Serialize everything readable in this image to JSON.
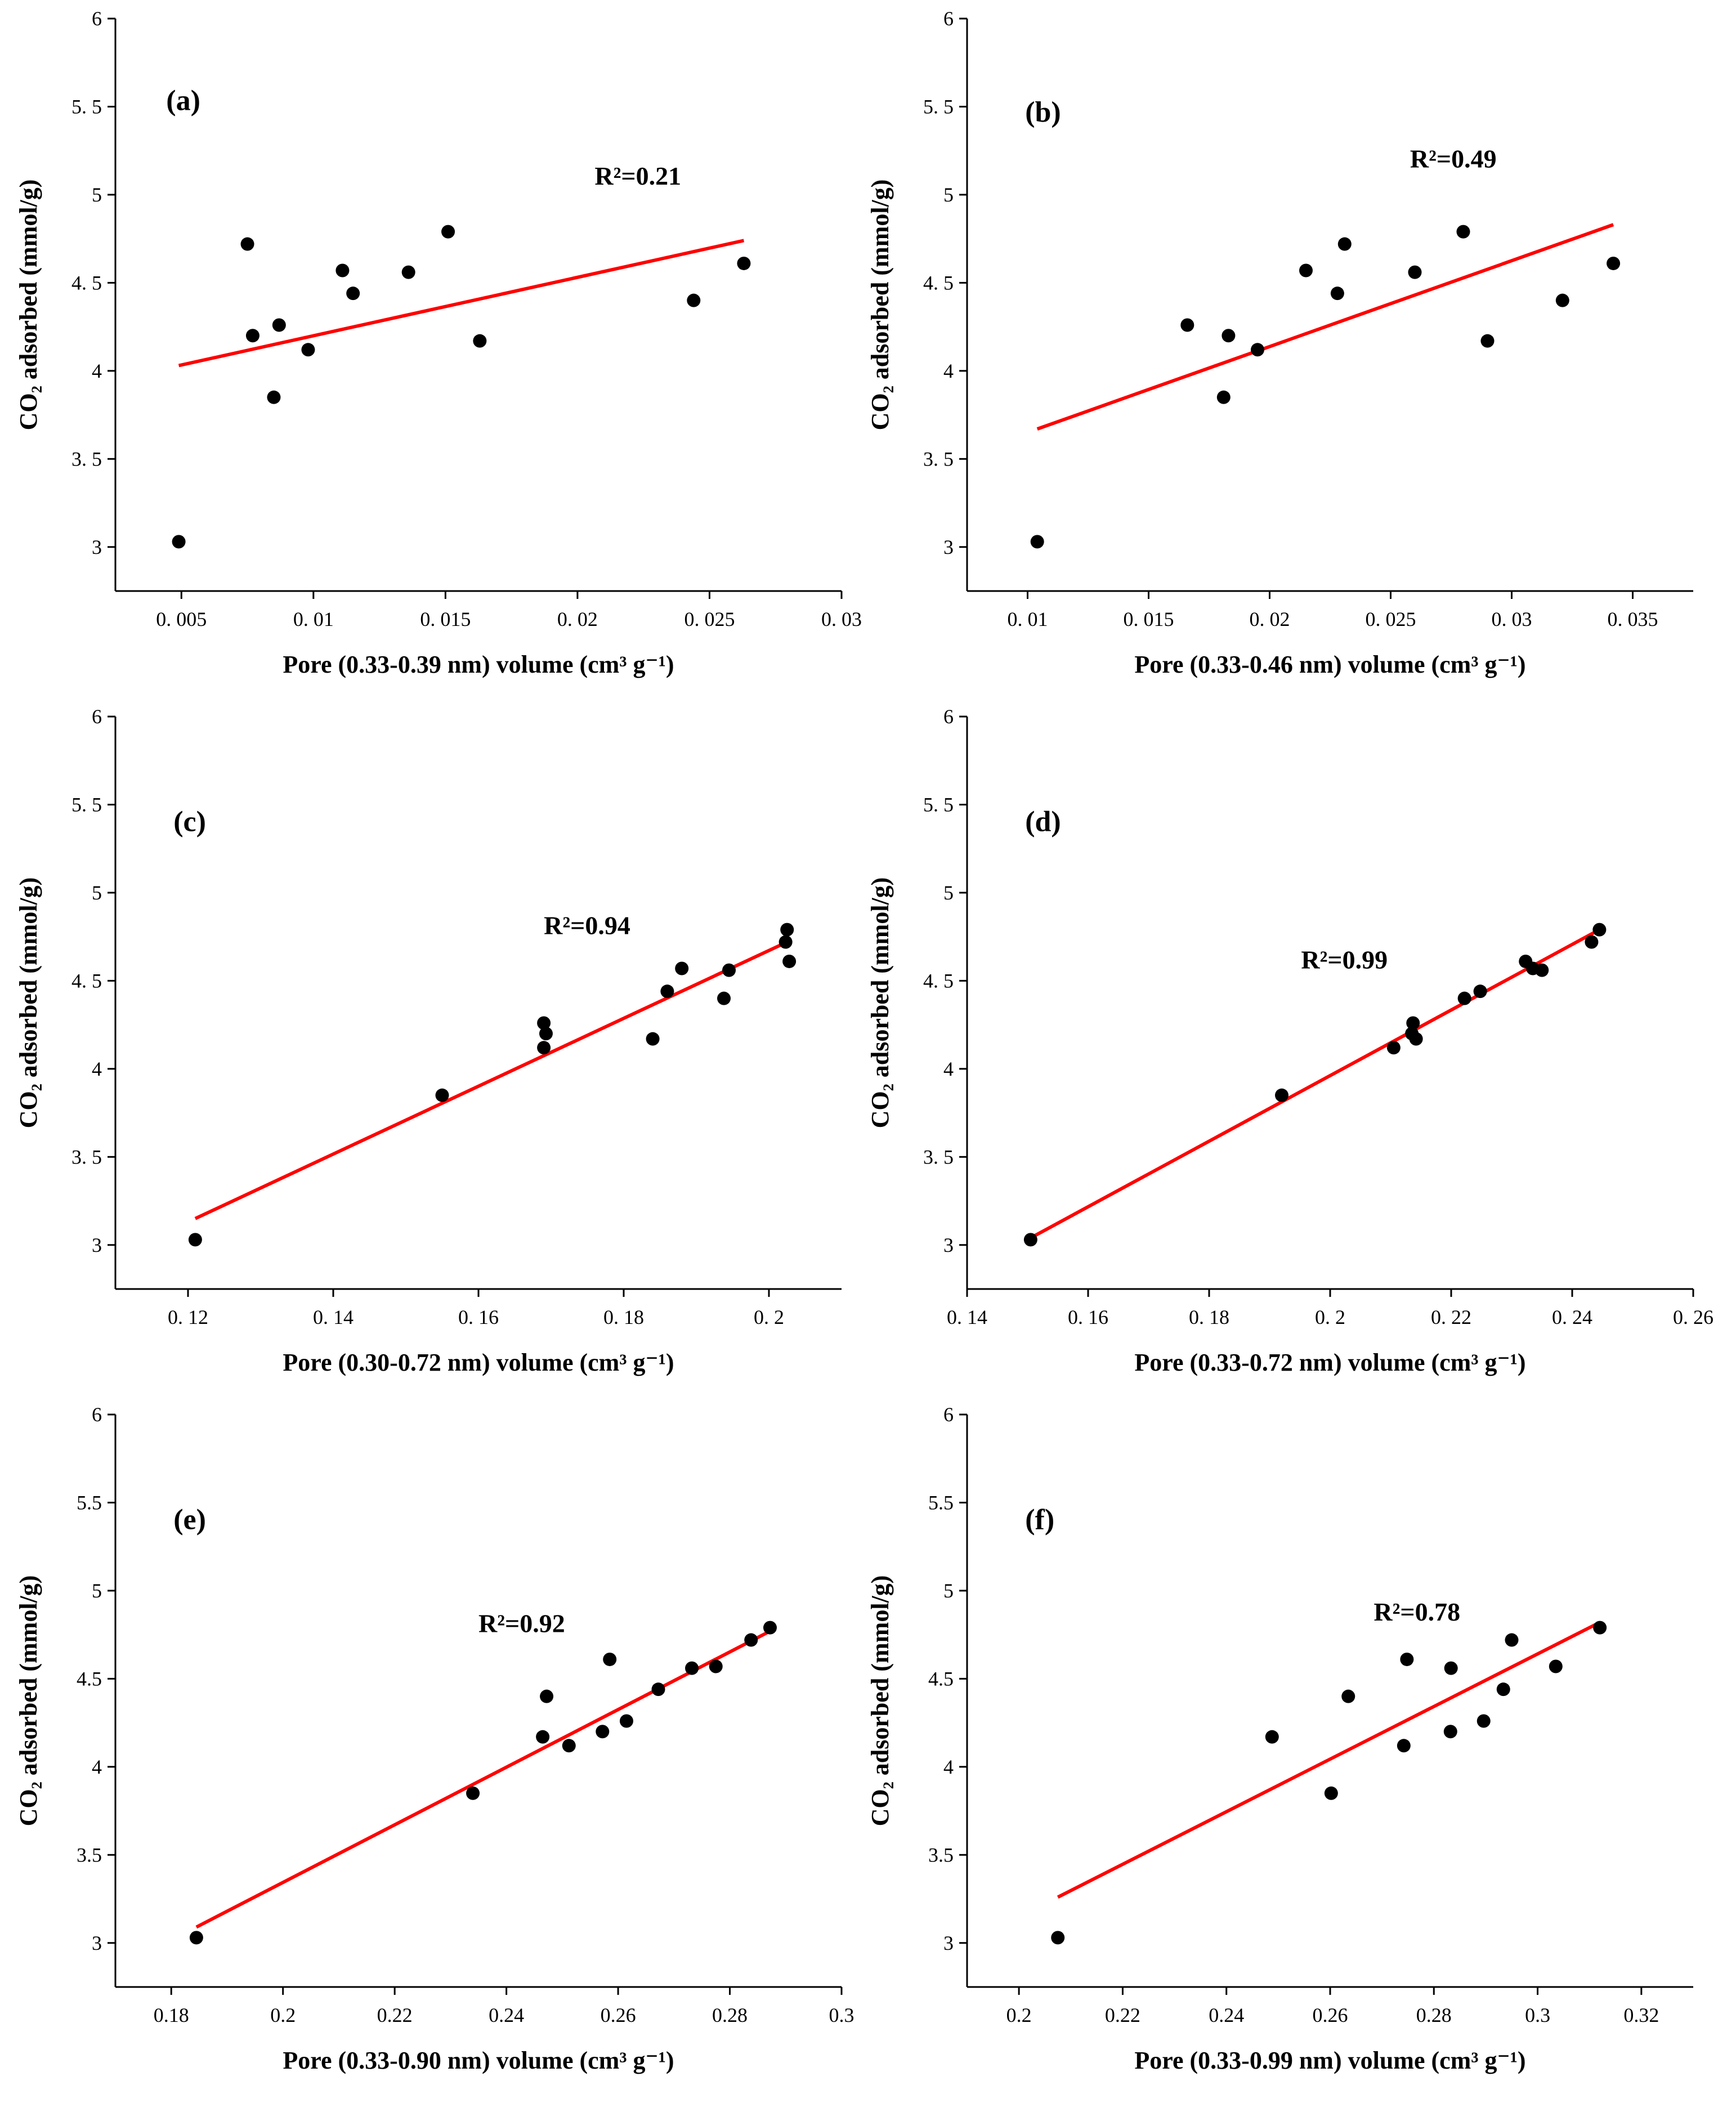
{
  "colors": {
    "points": "#000000",
    "fit_line": "#ff0000",
    "axes": "#000000",
    "background": "#ffffff"
  },
  "chart_data": [
    {
      "type": "scatter",
      "panel_label": "(a)",
      "r2_label": "R²=0.21",
      "xlabel": "Pore (0.33-0.39 nm)  volume  (cm³ g⁻¹)",
      "ylabel": "CO₂ adsorbed  (mmol/g)",
      "xlim": [
        0.0025,
        0.03
      ],
      "ylim": [
        2.75,
        6
      ],
      "xticks": [
        0.005,
        0.01,
        0.015,
        0.02,
        0.025,
        0.03
      ],
      "xtick_labels": [
        "0. 005",
        "0. 01",
        "0. 015",
        "0. 02",
        "0. 025",
        "0. 03"
      ],
      "yticks": [
        3,
        3.5,
        4,
        4.5,
        5,
        5.5,
        6
      ],
      "ytick_labels": [
        "3",
        "3. 5",
        "4",
        "4. 5",
        "5",
        "5. 5",
        "6"
      ],
      "x": [
        0.0049,
        0.0075,
        0.0077,
        0.0085,
        0.0087,
        0.0098,
        0.0111,
        0.0115,
        0.0136,
        0.0151,
        0.0163,
        0.0244,
        0.0263
      ],
      "y": [
        3.03,
        4.72,
        4.2,
        3.85,
        4.26,
        4.12,
        4.57,
        4.44,
        4.56,
        4.79,
        4.17,
        4.4,
        4.61
      ],
      "fit": {
        "x": [
          0.0049,
          0.0263
        ],
        "y": [
          4.03,
          4.74
        ]
      },
      "grid": false
    },
    {
      "type": "scatter",
      "panel_label": "(b)",
      "r2_label": "R²=0.49",
      "xlabel": "Pore (0.33-0.46 nm)  volume  (cm³ g⁻¹)",
      "ylabel": "CO₂ adsorbed  (mmol/g)",
      "xlim": [
        0.0075,
        0.0375
      ],
      "ylim": [
        2.75,
        6
      ],
      "xticks": [
        0.01,
        0.015,
        0.02,
        0.025,
        0.03,
        0.035
      ],
      "xtick_labels": [
        "0. 01",
        "0. 015",
        "0. 02",
        "0. 025",
        "0. 03",
        "0. 035"
      ],
      "yticks": [
        3,
        3.5,
        4,
        4.5,
        5,
        5.5,
        6
      ],
      "ytick_labels": [
        "3",
        "3. 5",
        "4",
        "4. 5",
        "5",
        "5. 5",
        "6"
      ],
      "x": [
        0.0104,
        0.0166,
        0.0181,
        0.0183,
        0.0195,
        0.0215,
        0.0228,
        0.0231,
        0.026,
        0.028,
        0.029,
        0.0321,
        0.0342
      ],
      "y": [
        3.03,
        4.26,
        3.85,
        4.2,
        4.12,
        4.57,
        4.44,
        4.72,
        4.56,
        4.79,
        4.17,
        4.4,
        4.61
      ],
      "fit": {
        "x": [
          0.0104,
          0.0342
        ],
        "y": [
          3.67,
          4.83
        ]
      },
      "grid": false
    },
    {
      "type": "scatter",
      "panel_label": "(c)",
      "r2_label": "R²=0.94",
      "xlabel": "Pore (0.30-0.72 nm)  volume  (cm³ g⁻¹)",
      "ylabel": "CO₂ adsorbed  (mmol/g)",
      "xlim": [
        0.11,
        0.21
      ],
      "ylim": [
        2.75,
        6
      ],
      "xticks": [
        0.12,
        0.14,
        0.16,
        0.18,
        0.2
      ],
      "xtick_labels": [
        "0. 12",
        "0. 14",
        "0. 16",
        "0. 18",
        "0. 2"
      ],
      "yticks": [
        3,
        3.5,
        4,
        4.5,
        5,
        5.5,
        6
      ],
      "ytick_labels": [
        "3",
        "3. 5",
        "4",
        "4. 5",
        "5",
        "5. 5",
        "6"
      ],
      "x": [
        0.121,
        0.155,
        0.169,
        0.169,
        0.1693,
        0.184,
        0.186,
        0.188,
        0.1938,
        0.1945,
        0.2023,
        0.2025,
        0.2028
      ],
      "y": [
        3.03,
        3.85,
        4.12,
        4.26,
        4.2,
        4.17,
        4.44,
        4.57,
        4.4,
        4.56,
        4.72,
        4.79,
        4.61
      ],
      "fit": {
        "x": [
          0.121,
          0.2025
        ],
        "y": [
          3.15,
          4.72
        ]
      },
      "grid": false
    },
    {
      "type": "scatter",
      "panel_label": "(d)",
      "r2_label": "R²=0.99",
      "xlabel": "Pore (0.33-0.72 nm)  volume  (cm³ g⁻¹)",
      "ylabel": "CO₂ adsorbed  (mmol/g)",
      "xlim": [
        0.14,
        0.26
      ],
      "ylim": [
        2.75,
        6
      ],
      "xticks": [
        0.14,
        0.16,
        0.18,
        0.2,
        0.22,
        0.24,
        0.26
      ],
      "xtick_labels": [
        "0. 14",
        "0. 16",
        "0. 18",
        "0. 2",
        "0. 22",
        "0. 24",
        "0. 26"
      ],
      "yticks": [
        3,
        3.5,
        4,
        4.5,
        5,
        5.5,
        6
      ],
      "ytick_labels": [
        "3",
        "3. 5",
        "4",
        "4. 5",
        "5",
        "5. 5",
        "6"
      ],
      "x": [
        0.1505,
        0.192,
        0.2105,
        0.2135,
        0.2137,
        0.2142,
        0.2222,
        0.2248,
        0.2323,
        0.2335,
        0.235,
        0.2432,
        0.2445
      ],
      "y": [
        3.03,
        3.85,
        4.12,
        4.2,
        4.26,
        4.17,
        4.4,
        4.44,
        4.61,
        4.57,
        4.56,
        4.72,
        4.79
      ],
      "fit": {
        "x": [
          0.1505,
          0.2445
        ],
        "y": [
          3.04,
          4.79
        ]
      },
      "grid": false
    },
    {
      "type": "scatter",
      "panel_label": "(e)",
      "r2_label": "R²=0.92",
      "xlabel": "Pore (0.33-0.90 nm)  volume  (cm³ g⁻¹)",
      "ylabel": "CO₂ adsorbed  (mmol/g)",
      "xlim": [
        0.17,
        0.3
      ],
      "ylim": [
        2.75,
        6
      ],
      "xticks": [
        0.18,
        0.2,
        0.22,
        0.24,
        0.26,
        0.28,
        0.3
      ],
      "xtick_labels": [
        "0.18",
        "0.2",
        "0.22",
        "0.24",
        "0.26",
        "0.28",
        "0.3"
      ],
      "yticks": [
        3,
        3.5,
        4,
        4.5,
        5,
        5.5,
        6
      ],
      "ytick_labels": [
        "3",
        "3.5",
        "4",
        "4.5",
        "5",
        "5.5",
        "6"
      ],
      "x": [
        0.1845,
        0.234,
        0.2465,
        0.2472,
        0.2512,
        0.2572,
        0.2585,
        0.2615,
        0.2672,
        0.2732,
        0.2775,
        0.2838,
        0.2872
      ],
      "y": [
        3.03,
        3.85,
        4.17,
        4.4,
        4.12,
        4.2,
        4.61,
        4.26,
        4.44,
        4.56,
        4.57,
        4.72,
        4.79
      ],
      "fit": {
        "x": [
          0.1845,
          0.2872
        ],
        "y": [
          3.09,
          4.77
        ]
      },
      "grid": false
    },
    {
      "type": "scatter",
      "panel_label": "(f)",
      "r2_label": "R²=0.78",
      "xlabel": "Pore (0.33-0.99 nm)  volume  (cm³ g⁻¹)",
      "ylabel": "CO₂ adsorbed  (mmol/g)",
      "xlim": [
        0.19,
        0.33
      ],
      "ylim": [
        2.75,
        6
      ],
      "xticks": [
        0.2,
        0.22,
        0.24,
        0.26,
        0.28,
        0.3,
        0.32
      ],
      "xtick_labels": [
        "0.2",
        "0.22",
        "0.24",
        "0.26",
        "0.28",
        "0.3",
        "0.32"
      ],
      "yticks": [
        3,
        3.5,
        4,
        4.5,
        5,
        5.5,
        6
      ],
      "ytick_labels": [
        "3",
        "3.5",
        "4",
        "4.5",
        "5",
        "5.5",
        "6"
      ],
      "x": [
        0.2075,
        0.2488,
        0.2602,
        0.2635,
        0.2742,
        0.2748,
        0.2832,
        0.2833,
        0.2896,
        0.2934,
        0.295,
        0.3035,
        0.312
      ],
      "y": [
        3.03,
        4.17,
        3.85,
        4.4,
        4.12,
        4.61,
        4.2,
        4.56,
        4.26,
        4.44,
        4.72,
        4.57,
        4.79
      ],
      "fit": {
        "x": [
          0.2075,
          0.312
        ],
        "y": [
          3.26,
          4.82
        ]
      },
      "grid": false
    }
  ]
}
